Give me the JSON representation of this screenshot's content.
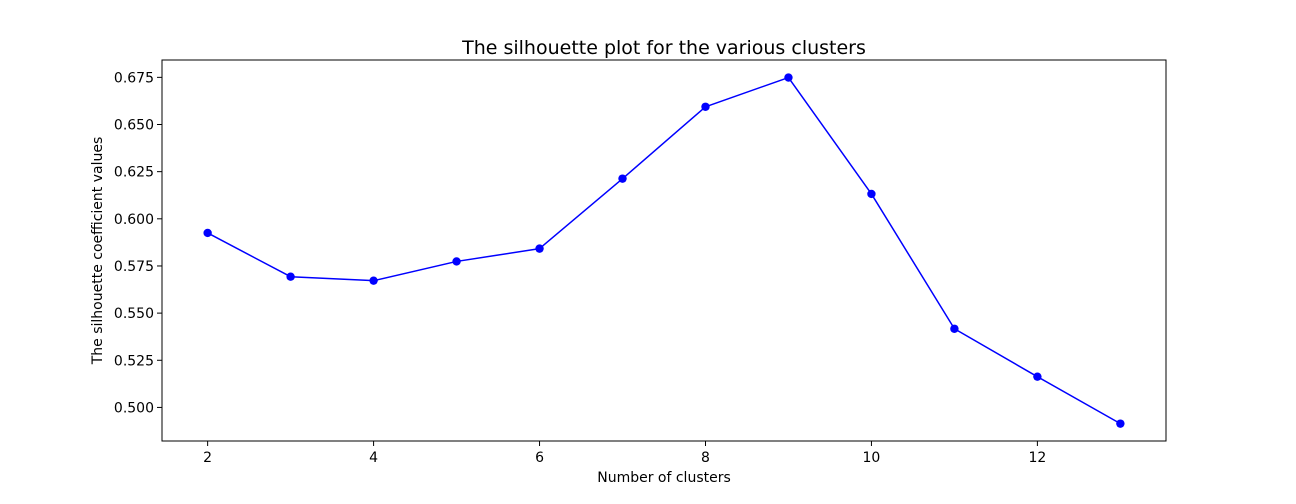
{
  "chart_data": {
    "type": "line",
    "title": "The silhouette plot for the various clusters",
    "xlabel": "Number of clusters",
    "ylabel": "The silhouette coefficient values",
    "x": [
      2,
      3,
      4,
      5,
      6,
      7,
      8,
      9,
      10,
      11,
      12,
      13
    ],
    "series": [
      {
        "values": [
          0.5925,
          0.5693,
          0.5672,
          0.5774,
          0.5842,
          0.6213,
          0.6594,
          0.6749,
          0.6132,
          0.5417,
          0.5163,
          0.4914
        ]
      }
    ],
    "xlim": [
      1.45,
      13.55
    ],
    "ylim": [
      0.4822,
      0.6842
    ],
    "xticks": [
      2,
      4,
      6,
      8,
      10,
      12
    ],
    "xtick_labels": [
      "2",
      "4",
      "6",
      "8",
      "10",
      "12"
    ],
    "yticks": [
      0.5,
      0.525,
      0.55,
      0.575,
      0.6,
      0.625,
      0.65,
      0.675
    ],
    "ytick_labels": [
      "0.500",
      "0.525",
      "0.550",
      "0.575",
      "0.600",
      "0.625",
      "0.650",
      "0.675"
    ],
    "line_color": "#0000ff",
    "marker": "circle",
    "grid": false,
    "legend": false
  }
}
